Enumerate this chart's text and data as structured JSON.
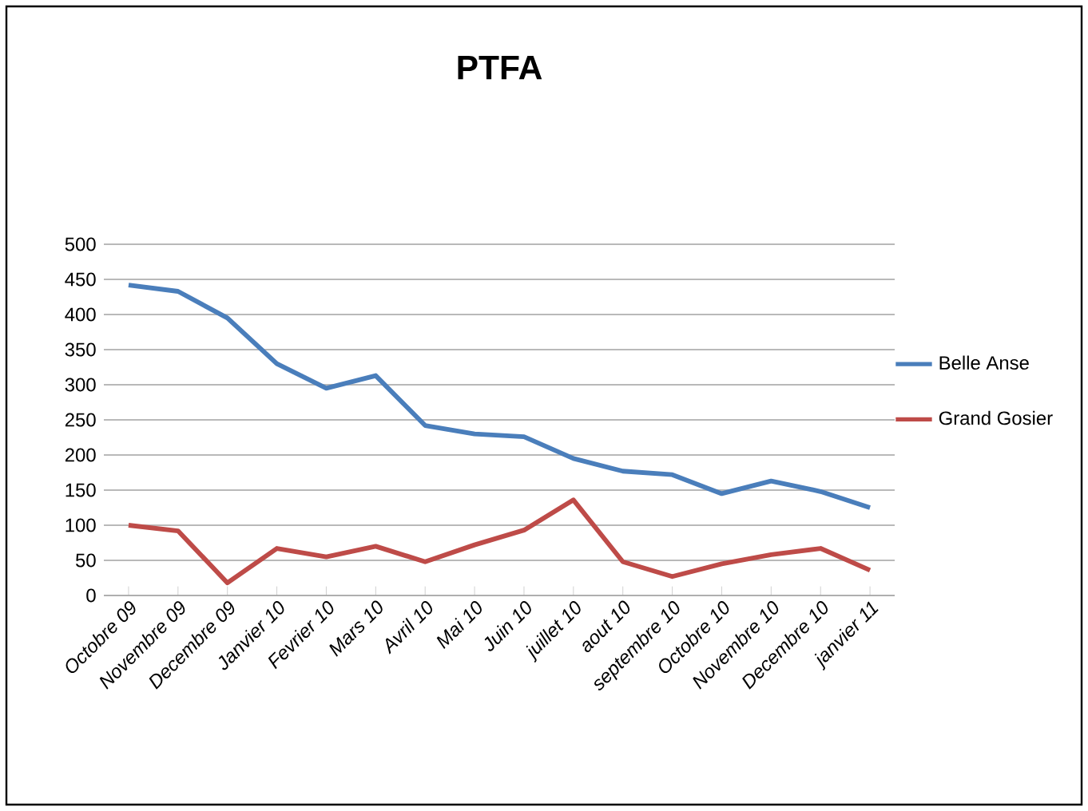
{
  "chart_data": {
    "type": "line",
    "title": "PTFA",
    "categories": [
      "Octobre 09",
      "Novembre 09",
      "Decembre 09",
      "Janvier 10",
      "Fevrier 10",
      "Mars 10",
      "Avril 10",
      "Mai 10",
      "Juin 10",
      "juillet 10",
      "aout 10",
      "septembre 10",
      "Octobre 10",
      "Novembre 10",
      "Decembre 10",
      "janvier 11"
    ],
    "series": [
      {
        "name": "Belle Anse",
        "color": "#4a7ebb",
        "values": [
          442,
          433,
          395,
          330,
          295,
          313,
          242,
          230,
          226,
          195,
          177,
          172,
          145,
          163,
          148,
          125
        ]
      },
      {
        "name": "Grand Gosier",
        "color": "#be4b48",
        "values": [
          100,
          92,
          18,
          67,
          55,
          70,
          48,
          72,
          93,
          136,
          48,
          27,
          45,
          58,
          67,
          36
        ]
      }
    ],
    "ylim": [
      0,
      500
    ],
    "yticks": [
      0,
      50,
      100,
      150,
      200,
      250,
      300,
      350,
      400,
      450,
      500
    ],
    "grid": "y",
    "legend": "right",
    "marker": "none",
    "line_style": "solid"
  }
}
